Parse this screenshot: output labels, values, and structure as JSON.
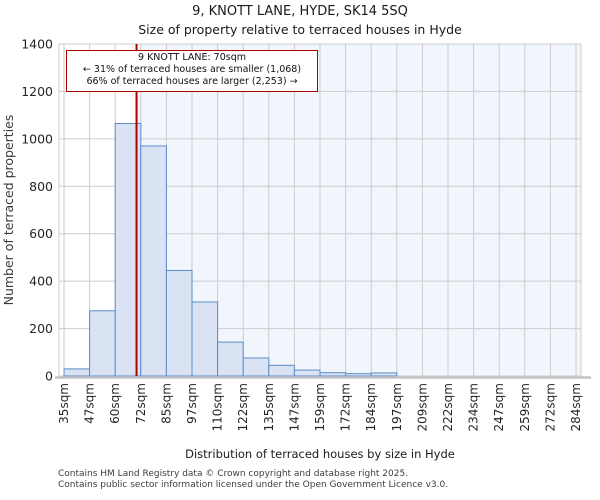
{
  "header": {
    "title": "9, KNOTT LANE, HYDE, SK14 5SQ",
    "subtitle": "Size of property relative to terraced houses in Hyde"
  },
  "annotation": {
    "line1": "9 KNOTT LANE: 70sqm",
    "line2": "← 31% of terraced houses are smaller (1,068)",
    "line3": "66% of terraced houses are larger (2,253) →"
  },
  "chart_data": {
    "type": "bar",
    "title": "9, KNOTT LANE, HYDE, SK14 5SQ",
    "subtitle": "Size of property relative to terraced houses in Hyde",
    "xlabel": "Distribution of terraced houses by size in Hyde",
    "ylabel": "Number of terraced properties",
    "bin_edges_sqm": [
      35,
      47,
      60,
      72,
      85,
      97,
      110,
      122,
      135,
      147,
      159,
      172,
      184,
      197,
      209,
      222,
      234,
      247,
      259,
      272,
      284
    ],
    "x_tick_labels": [
      "35sqm",
      "47sqm",
      "60sqm",
      "72sqm",
      "85sqm",
      "97sqm",
      "110sqm",
      "122sqm",
      "135sqm",
      "147sqm",
      "159sqm",
      "172sqm",
      "184sqm",
      "197sqm",
      "209sqm",
      "222sqm",
      "234sqm",
      "247sqm",
      "259sqm",
      "272sqm",
      "284sqm"
    ],
    "values": [
      30,
      275,
      1065,
      970,
      445,
      312,
      143,
      76,
      45,
      25,
      14,
      10,
      13,
      0,
      0,
      0,
      0,
      0,
      0,
      0
    ],
    "y_ticks": [
      0,
      200,
      400,
      600,
      800,
      1000,
      1200,
      1400
    ],
    "ylim": [
      0,
      1400
    ],
    "grid": true,
    "legend": false,
    "marker_sqm": 70,
    "marker_label": "9 KNOTT LANE: 70sqm",
    "smaller_pct": "31%",
    "smaller_count": "1,068",
    "larger_pct": "66%",
    "larger_count": "2,253",
    "colors": {
      "bar_fill": "#d9e3f4",
      "bar_stroke": "#5b8cc8",
      "marker_line": "#b00000",
      "region_shade": "#f1f5fc",
      "grid": "#cccccc",
      "axis": "#c4c4c4",
      "annotation_border": "#b30000",
      "tick_text": "#262626",
      "axis_label_text": "#3a3a3a"
    }
  },
  "footer": {
    "line1": "Contains HM Land Registry data © Crown copyright and database right 2025.",
    "line2": "Contains public sector information licensed under the Open Government Licence v3.0."
  }
}
